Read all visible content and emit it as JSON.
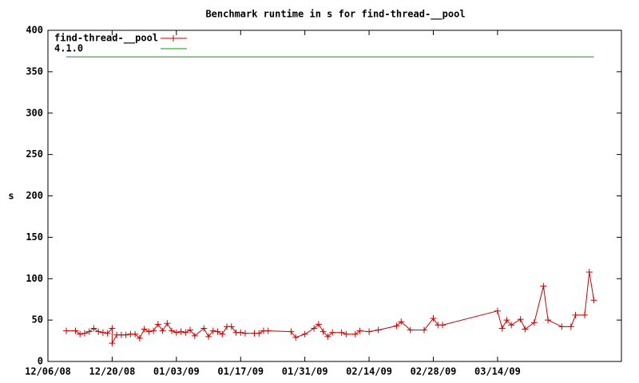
{
  "chart_data": {
    "type": "line",
    "title": "Benchmark runtime in s for find-thread-__pool",
    "y_label": "s",
    "x": [
      "12/10/08",
      "12/12/08",
      "12/13/08",
      "12/14/08",
      "12/15/08",
      "12/16/08",
      "12/17/08",
      "12/18/08",
      "12/19/08",
      "12/20/08",
      "12/20/08",
      "12/21/08",
      "12/22/08",
      "12/23/08",
      "12/24/08",
      "12/25/08",
      "12/26/08",
      "12/27/08",
      "12/28/08",
      "12/29/08",
      "12/30/08",
      "12/31/08",
      "01/01/09",
      "01/02/09",
      "01/03/09",
      "01/04/09",
      "01/05/09",
      "01/06/09",
      "01/07/09",
      "01/09/09",
      "01/10/09",
      "01/11/09",
      "01/12/09",
      "01/13/09",
      "01/14/09",
      "01/15/09",
      "01/16/09",
      "01/17/09",
      "01/18/09",
      "01/20/09",
      "01/21/09",
      "01/22/09",
      "01/23/09",
      "01/28/09",
      "01/29/09",
      "01/31/09",
      "02/02/09",
      "02/03/09",
      "02/04/09",
      "02/05/09",
      "02/06/09",
      "02/08/09",
      "02/09/09",
      "02/11/09",
      "02/12/09",
      "02/14/09",
      "02/16/09",
      "02/20/09",
      "02/21/09",
      "02/23/09",
      "02/26/09",
      "02/28/09",
      "03/01/09",
      "03/02/09",
      "03/14/09",
      "03/15/09",
      "03/16/09",
      "03/17/09",
      "03/19/09",
      "03/20/09",
      "03/22/09",
      "03/24/09",
      "03/25/09",
      "03/28/09",
      "03/30/09",
      "03/31/09",
      "04/02/09",
      "04/03/09",
      "04/04/09"
    ],
    "series": [
      {
        "name": "find-thread-__pool",
        "color": "#cc0000",
        "marker": "+",
        "values": [
          37,
          37,
          33,
          34,
          36,
          40,
          36,
          35,
          34,
          40,
          22,
          32,
          32,
          32,
          33,
          33,
          28,
          39,
          36,
          37,
          45,
          37,
          46,
          37,
          35,
          36,
          35,
          38,
          31,
          40,
          30,
          37,
          36,
          33,
          42,
          42,
          35,
          35,
          34,
          34,
          34,
          37,
          37,
          36,
          29,
          33,
          40,
          45,
          36,
          30,
          35,
          35,
          33,
          33,
          37,
          36,
          38,
          43,
          48,
          38,
          38,
          52,
          44,
          44,
          61,
          40,
          50,
          44,
          51,
          39,
          47,
          91,
          50,
          42,
          42,
          56,
          56,
          108,
          74
        ]
      },
      {
        "name": "4.1.0",
        "color": "#00a000",
        "x": [
          "12/10/08",
          "04/04/09"
        ],
        "values": [
          368,
          368
        ]
      }
    ],
    "xlim": [
      "12/06/08",
      "04/10/09"
    ],
    "xticks": [
      "12/06/08",
      "12/20/08",
      "01/03/09",
      "01/17/09",
      "01/31/09",
      "02/14/09",
      "02/28/09",
      "03/14/09"
    ],
    "ylim": [
      0,
      400
    ],
    "yticks": [
      0,
      50,
      100,
      150,
      200,
      250,
      300,
      350,
      400
    ],
    "legend": "top-left"
  }
}
